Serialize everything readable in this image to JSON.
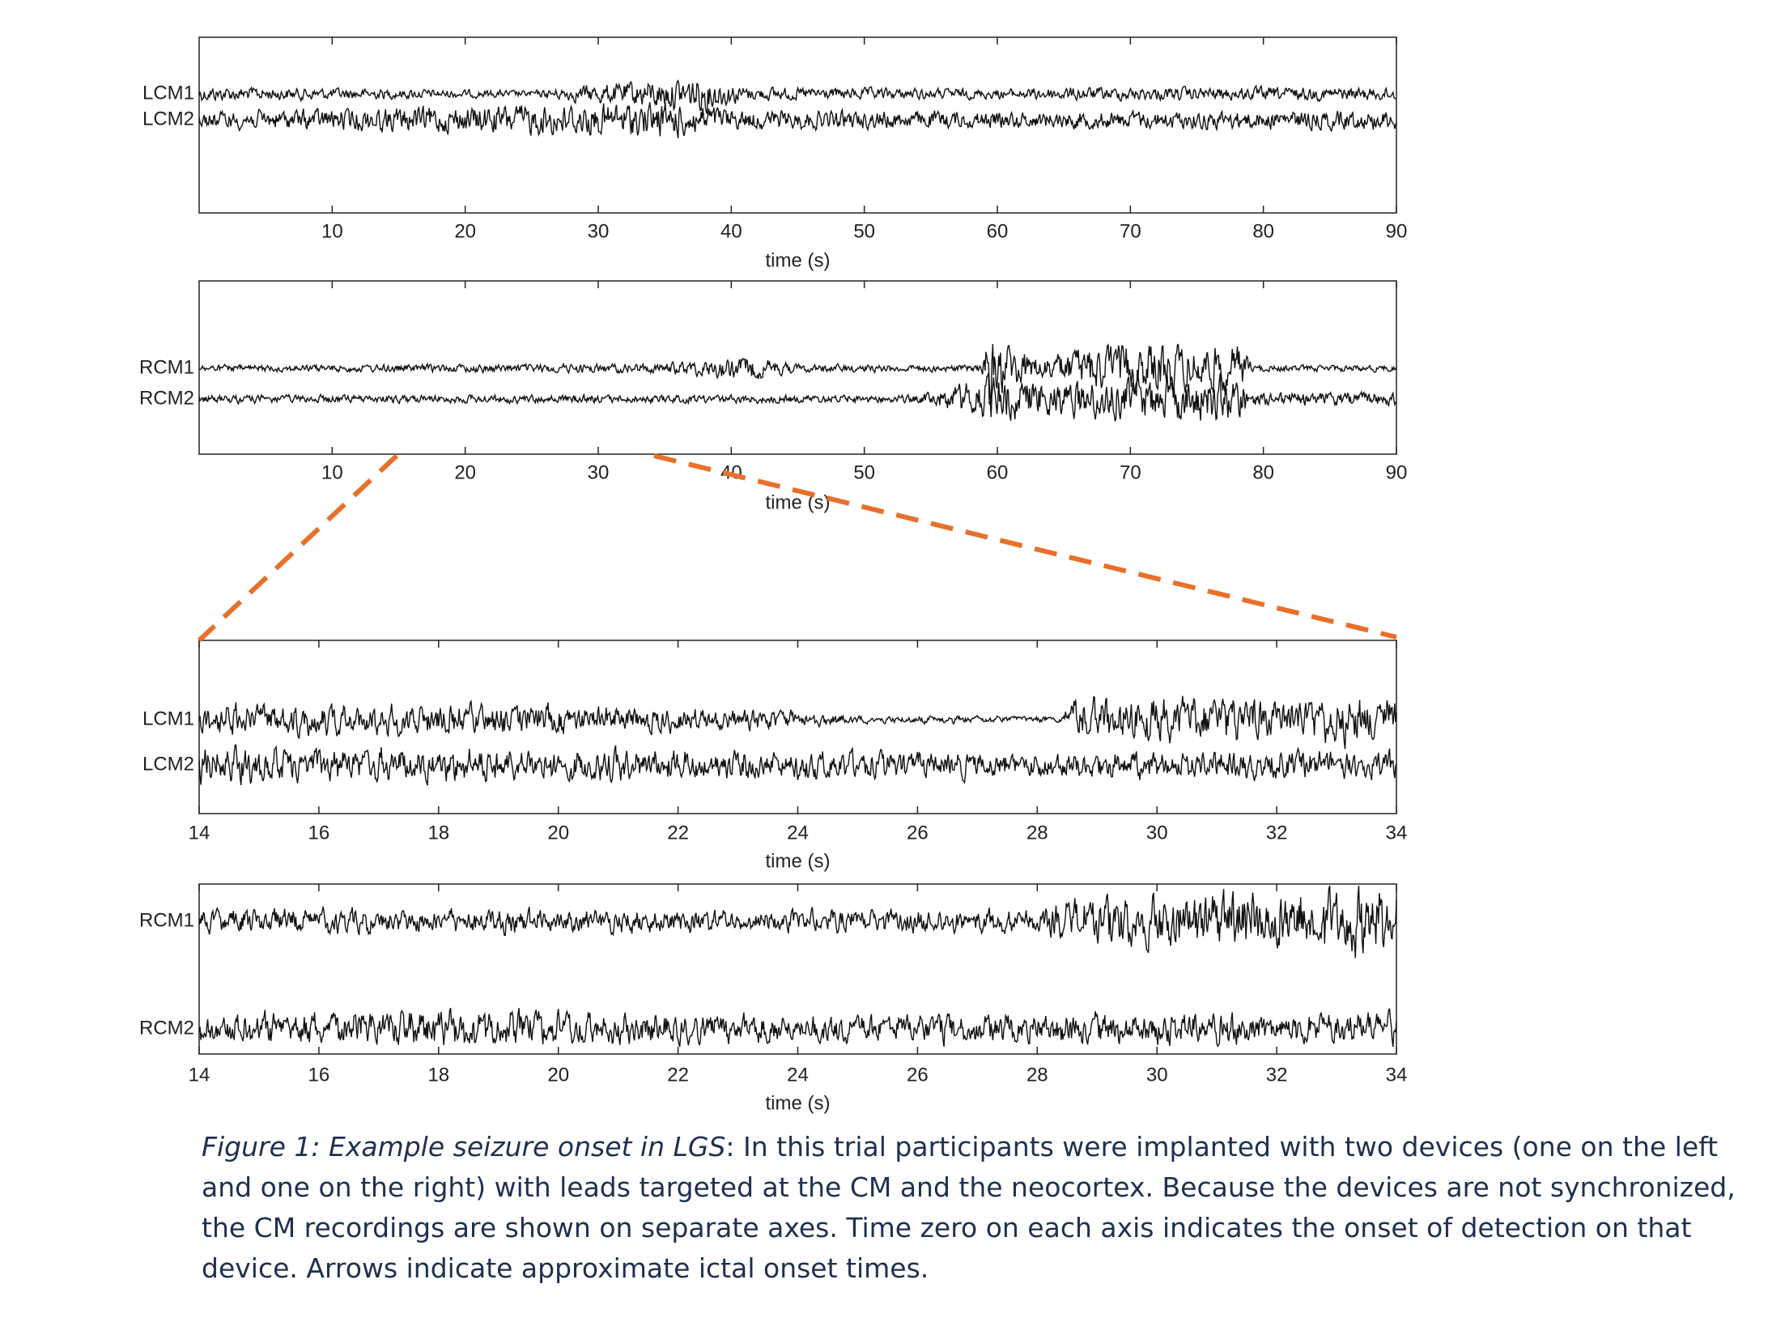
{
  "figure": {
    "panels": [
      {
        "channels": [
          "LCM1",
          "LCM2"
        ],
        "xlim": [
          0,
          90
        ],
        "xticks": [
          10,
          20,
          30,
          40,
          50,
          60,
          70,
          80,
          90
        ],
        "xlabel": "time (s)"
      },
      {
        "channels": [
          "RCM1",
          "RCM2"
        ],
        "xlim": [
          0,
          90
        ],
        "xticks": [
          10,
          20,
          30,
          40,
          50,
          60,
          70,
          80,
          90
        ],
        "xlabel": "time (s)"
      },
      {
        "channels": [
          "LCM1",
          "LCM2"
        ],
        "xlim": [
          14,
          34
        ],
        "xticks": [
          14,
          16,
          18,
          20,
          22,
          24,
          26,
          28,
          30,
          32,
          34
        ],
        "xlabel": "time (s)"
      },
      {
        "channels": [
          "RCM1",
          "RCM2"
        ],
        "xlim": [
          14,
          34
        ],
        "xticks": [
          14,
          16,
          18,
          20,
          22,
          24,
          26,
          28,
          30,
          32,
          34
        ],
        "xlabel": "time (s)"
      }
    ],
    "caption": {
      "label": "Figure 1: Example seizure onset in LGS",
      "text": ": In this trial participants were implanted with two devices (one on the left and one on the right) with leads targeted at the CM and the neocortex. Because the devices are not synchronized, the CM recordings are shown on separate axes. Time zero on each axis indicates the onset of detection on that device. Arrows indicate approximate ictal onset times."
    }
  }
}
